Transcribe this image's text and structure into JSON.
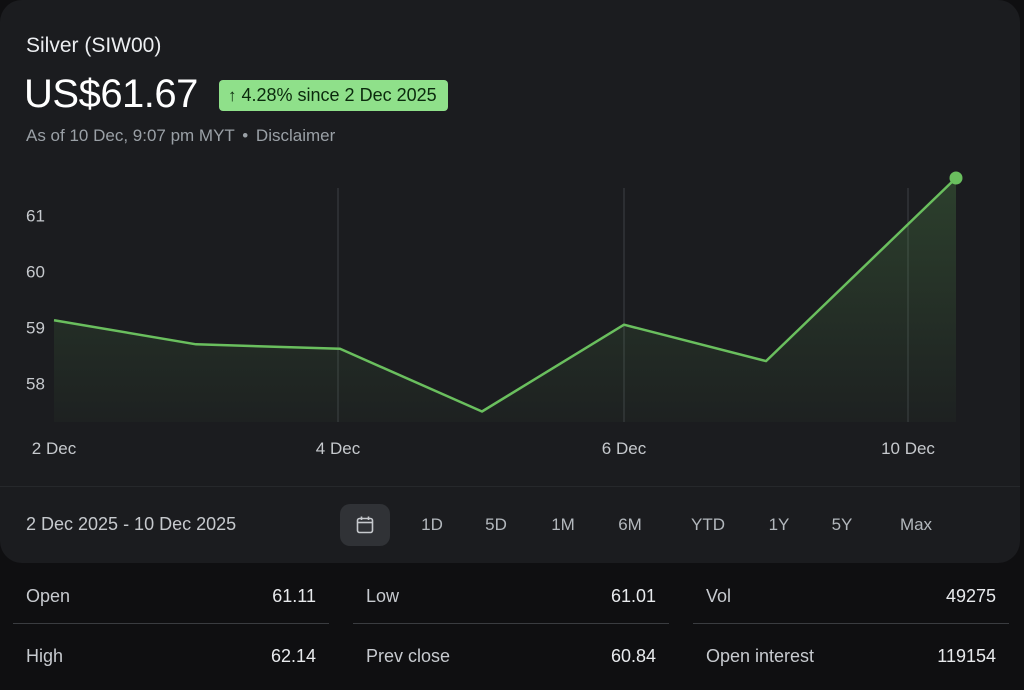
{
  "header": {
    "title": "Silver (SIW00)",
    "price": "US$61.67",
    "change_badge": "4.28% since 2 Dec 2025",
    "as_of": "As of 10 Dec, 9:07 pm MYT",
    "separator": "•",
    "disclaimer": "Disclaimer"
  },
  "colors": {
    "line": "#6abf5e",
    "badge_bg": "#8fe08a",
    "badge_text": "#0b2a0d",
    "background": "#1b1c1f"
  },
  "chart_data": {
    "type": "area",
    "x": [
      "2 Dec",
      "3 Dec",
      "4 Dec",
      "5 Dec",
      "6 Dec",
      "7 Dec",
      "10 Dec"
    ],
    "values": [
      59.13,
      58.7,
      58.62,
      57.5,
      59.05,
      58.4,
      61.67
    ],
    "x_tick_labels": [
      "2 Dec",
      "4 Dec",
      "6 Dec",
      "10 Dec"
    ],
    "y_tick_labels": [
      "61",
      "60",
      "59",
      "58"
    ],
    "y_ticks": [
      61,
      60,
      59,
      58
    ],
    "ylim": [
      57.5,
      61.67
    ],
    "grid": "vertical",
    "end_marker": true
  },
  "range_bar": {
    "date_range": "2 Dec 2025 - 10 Dec 2025",
    "calendar_icon": "calendar-icon",
    "periods": [
      "1D",
      "5D",
      "1M",
      "6M",
      "YTD",
      "1Y",
      "5Y",
      "Max"
    ]
  },
  "stats": {
    "open": {
      "label": "Open",
      "value": "61.11"
    },
    "high": {
      "label": "High",
      "value": "62.14"
    },
    "low": {
      "label": "Low",
      "value": "61.01"
    },
    "prev_close": {
      "label": "Prev close",
      "value": "60.84"
    },
    "vol": {
      "label": "Vol",
      "value": "49275"
    },
    "open_interest": {
      "label": "Open interest",
      "value": "119154"
    }
  }
}
